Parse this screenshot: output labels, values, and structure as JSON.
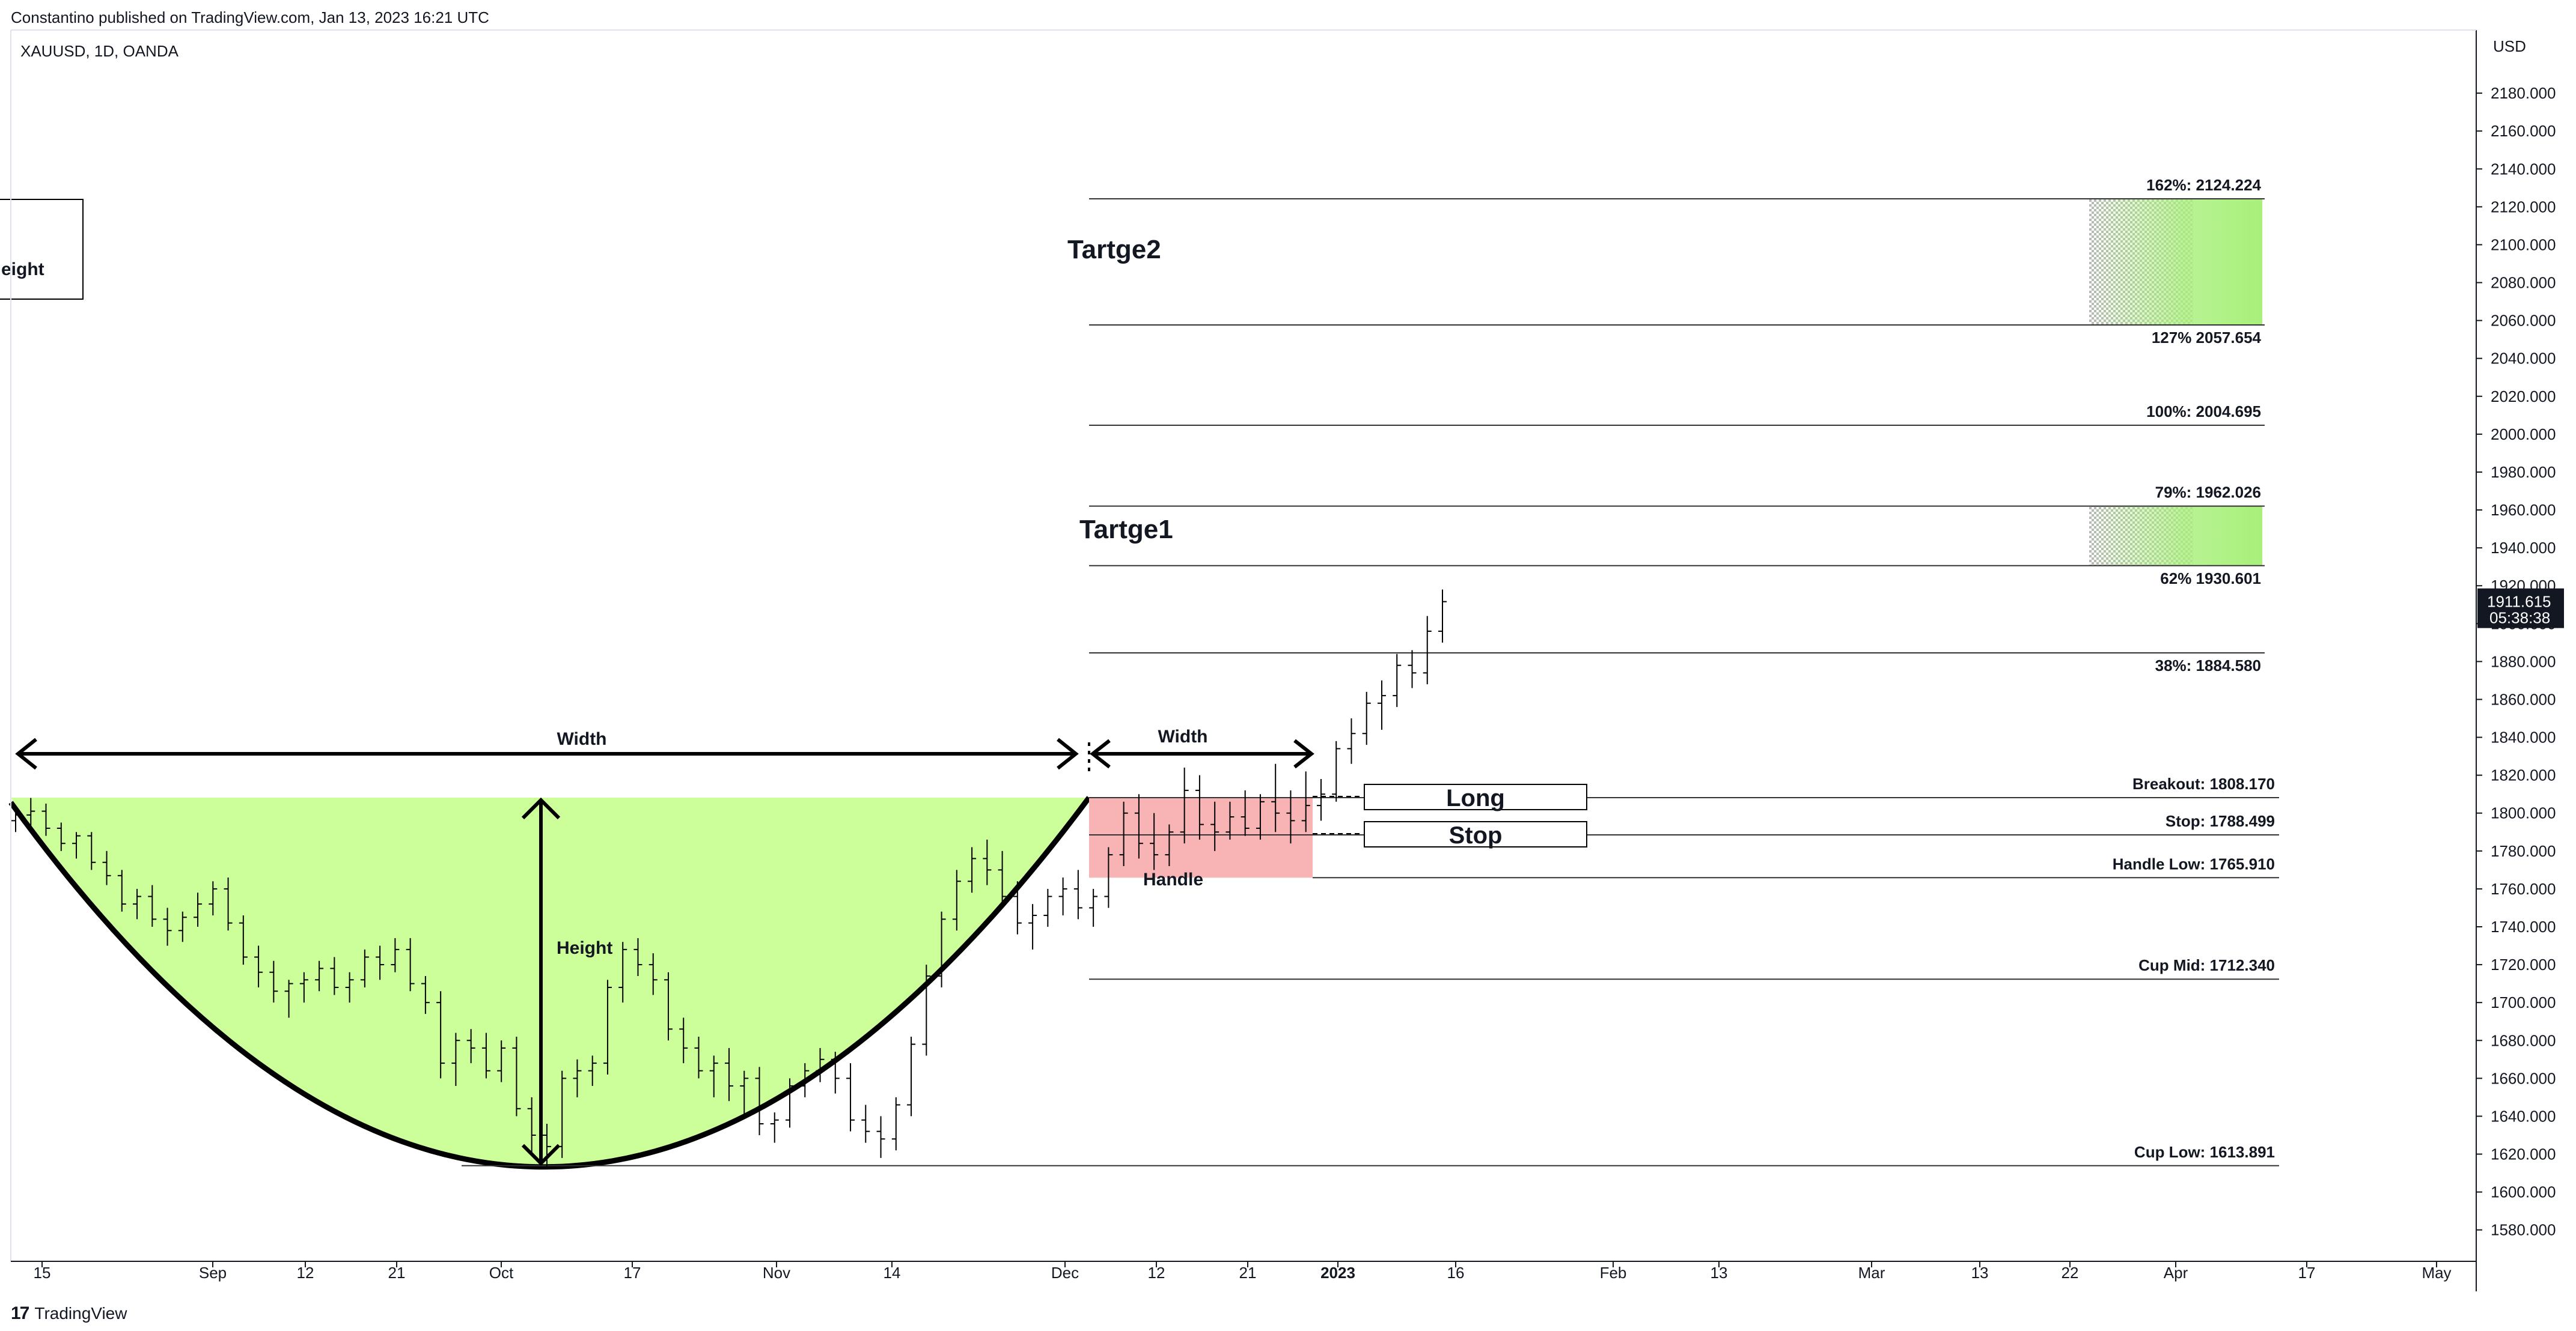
{
  "header": {
    "publish_line": "Constantino published on TradingView.com, Jan 13, 2023 16:21 UTC"
  },
  "symbol_line": "XAUUSD, 1D, OANDA",
  "footer": {
    "logo_mark": "17",
    "brand": "TradingView"
  },
  "price_axis": {
    "currency": "USD",
    "current_price": "1911.615",
    "countdown": "05:38:38"
  },
  "annotations": {
    "cup_width_label": "Width",
    "handle_width_label": "Width",
    "height_label": "Height",
    "height_box_fragment": "eight",
    "handle_label": "Handle",
    "long_label": "Long",
    "stop_label": "Stop",
    "target1_label": "Tartge1",
    "target2_label": "Tartge2"
  },
  "colors": {
    "cup_fill": "#ccff99",
    "handle_fill": "#f8b4b4",
    "target_fill": "#a8f07a",
    "price_tag_bg": "#131722"
  },
  "chart_data": {
    "type": "ohlc",
    "symbol": "XAUUSD",
    "interval": "1D",
    "ylim": [
      1565,
      2200
    ],
    "y_ticks": [
      1580,
      1600,
      1620,
      1640,
      1660,
      1680,
      1700,
      1720,
      1740,
      1760,
      1780,
      1800,
      1820,
      1840,
      1860,
      1880,
      1900,
      1920,
      1940,
      1960,
      1980,
      2000,
      2020,
      2040,
      2060,
      2080,
      2100,
      2120,
      2140,
      2160,
      2180
    ],
    "x_ticks": [
      "15",
      "Sep",
      "12",
      "21",
      "Oct",
      "17",
      "Nov",
      "14",
      "Dec",
      "12",
      "21",
      "2023",
      "16",
      "Feb",
      "13",
      "Mar",
      "13",
      "22",
      "Apr",
      "17",
      "May"
    ],
    "levels": [
      {
        "label": "162%: 2124.224",
        "value": 2124.224
      },
      {
        "label": "127% 2057.654",
        "value": 2057.654
      },
      {
        "label": "100%: 2004.695",
        "value": 2004.695
      },
      {
        "label": "79%: 1962.026",
        "value": 1962.026
      },
      {
        "label": "62% 1930.601",
        "value": 1930.601
      },
      {
        "label": "38%: 1884.580",
        "value": 1884.58
      },
      {
        "label": "Breakout: 1808.170",
        "value": 1808.17
      },
      {
        "label": "Stop: 1788.499",
        "value": 1788.499
      },
      {
        "label": "Handle Low: 1765.910",
        "value": 1765.91
      },
      {
        "label": "Cup Mid: 1712.340",
        "value": 1712.34
      },
      {
        "label": "Cup Low: 1613.891",
        "value": 1613.891
      }
    ],
    "cup": {
      "rim": 1808.17,
      "low": 1613.891
    },
    "handle": {
      "high": 1808.17,
      "low": 1765.91
    },
    "ohlc": [
      [
        1796,
        1803,
        1790,
        1799
      ],
      [
        1799,
        1808,
        1792,
        1801
      ],
      [
        1801,
        1805,
        1788,
        1792
      ],
      [
        1792,
        1795,
        1780,
        1784
      ],
      [
        1784,
        1790,
        1776,
        1788
      ],
      [
        1788,
        1790,
        1770,
        1774
      ],
      [
        1774,
        1780,
        1762,
        1767
      ],
      [
        1767,
        1770,
        1748,
        1752
      ],
      [
        1752,
        1760,
        1744,
        1756
      ],
      [
        1756,
        1762,
        1740,
        1744
      ],
      [
        1744,
        1750,
        1730,
        1738
      ],
      [
        1738,
        1748,
        1732,
        1745
      ],
      [
        1745,
        1758,
        1740,
        1752
      ],
      [
        1752,
        1764,
        1746,
        1760
      ],
      [
        1760,
        1766,
        1738,
        1742
      ],
      [
        1742,
        1746,
        1720,
        1724
      ],
      [
        1724,
        1730,
        1708,
        1716
      ],
      [
        1716,
        1722,
        1700,
        1706
      ],
      [
        1706,
        1712,
        1692,
        1710
      ],
      [
        1710,
        1716,
        1700,
        1712
      ],
      [
        1712,
        1722,
        1706,
        1718
      ],
      [
        1718,
        1724,
        1704,
        1708
      ],
      [
        1708,
        1716,
        1700,
        1712
      ],
      [
        1712,
        1728,
        1708,
        1724
      ],
      [
        1724,
        1730,
        1712,
        1720
      ],
      [
        1720,
        1734,
        1716,
        1728
      ],
      [
        1728,
        1734,
        1706,
        1710
      ],
      [
        1710,
        1714,
        1694,
        1700
      ],
      [
        1700,
        1706,
        1660,
        1668
      ],
      [
        1668,
        1684,
        1656,
        1680
      ],
      [
        1680,
        1686,
        1668,
        1676
      ],
      [
        1676,
        1684,
        1660,
        1664
      ],
      [
        1664,
        1680,
        1658,
        1676
      ],
      [
        1676,
        1682,
        1640,
        1644
      ],
      [
        1644,
        1650,
        1620,
        1630
      ],
      [
        1630,
        1636,
        1612,
        1624
      ],
      [
        1624,
        1664,
        1618,
        1660
      ],
      [
        1660,
        1670,
        1650,
        1664
      ],
      [
        1664,
        1672,
        1656,
        1668
      ],
      [
        1668,
        1712,
        1662,
        1708
      ],
      [
        1708,
        1732,
        1700,
        1728
      ],
      [
        1728,
        1734,
        1714,
        1720
      ],
      [
        1720,
        1726,
        1704,
        1712
      ],
      [
        1712,
        1716,
        1680,
        1686
      ],
      [
        1686,
        1692,
        1668,
        1676
      ],
      [
        1676,
        1682,
        1660,
        1664
      ],
      [
        1664,
        1672,
        1650,
        1668
      ],
      [
        1668,
        1676,
        1648,
        1656
      ],
      [
        1656,
        1664,
        1640,
        1660
      ],
      [
        1660,
        1666,
        1630,
        1636
      ],
      [
        1636,
        1642,
        1626,
        1638
      ],
      [
        1638,
        1660,
        1634,
        1656
      ],
      [
        1656,
        1668,
        1650,
        1664
      ],
      [
        1664,
        1676,
        1658,
        1670
      ],
      [
        1670,
        1674,
        1652,
        1660
      ],
      [
        1660,
        1668,
        1632,
        1638
      ],
      [
        1638,
        1646,
        1626,
        1632
      ],
      [
        1632,
        1640,
        1618,
        1628
      ],
      [
        1628,
        1650,
        1622,
        1646
      ],
      [
        1646,
        1682,
        1640,
        1678
      ],
      [
        1678,
        1720,
        1672,
        1714
      ],
      [
        1714,
        1748,
        1708,
        1744
      ],
      [
        1744,
        1770,
        1738,
        1764
      ],
      [
        1764,
        1782,
        1758,
        1776
      ],
      [
        1776,
        1786,
        1762,
        1770
      ],
      [
        1770,
        1780,
        1750,
        1756
      ],
      [
        1756,
        1764,
        1736,
        1742
      ],
      [
        1742,
        1752,
        1728,
        1746
      ],
      [
        1746,
        1760,
        1740,
        1756
      ],
      [
        1756,
        1766,
        1746,
        1760
      ],
      [
        1760,
        1770,
        1744,
        1750
      ],
      [
        1750,
        1760,
        1740,
        1756
      ],
      [
        1756,
        1782,
        1750,
        1778
      ],
      [
        1778,
        1806,
        1772,
        1800
      ],
      [
        1800,
        1810,
        1776,
        1784
      ],
      [
        1784,
        1800,
        1770,
        1778
      ],
      [
        1778,
        1794,
        1772,
        1790
      ],
      [
        1790,
        1824,
        1784,
        1812
      ],
      [
        1812,
        1820,
        1786,
        1794
      ],
      [
        1794,
        1806,
        1780,
        1790
      ],
      [
        1790,
        1806,
        1786,
        1798
      ],
      [
        1798,
        1812,
        1788,
        1792
      ],
      [
        1792,
        1810,
        1786,
        1806
      ],
      [
        1806,
        1826,
        1790,
        1800
      ],
      [
        1800,
        1812,
        1784,
        1796
      ],
      [
        1796,
        1822,
        1790,
        1804
      ],
      [
        1804,
        1818,
        1796,
        1810
      ],
      [
        1810,
        1838,
        1806,
        1834
      ],
      [
        1834,
        1850,
        1826,
        1842
      ],
      [
        1842,
        1864,
        1836,
        1858
      ],
      [
        1858,
        1870,
        1844,
        1862
      ],
      [
        1862,
        1884,
        1856,
        1878
      ],
      [
        1878,
        1886,
        1866,
        1874
      ],
      [
        1874,
        1904,
        1868,
        1896
      ],
      [
        1896,
        1918,
        1890,
        1911.615
      ]
    ]
  }
}
